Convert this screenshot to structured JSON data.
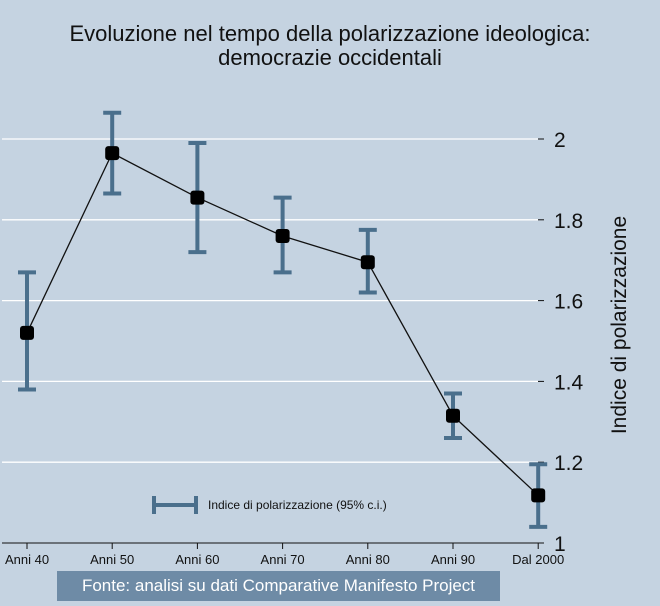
{
  "chart_data": {
    "type": "line",
    "title": "Evoluzione nel tempo della polarizzazione ideologica:",
    "subtitle": "democrazie occidentali",
    "ylabel": "Indice di polarizzazione",
    "xlabel": "",
    "categories": [
      "Anni 40",
      "Anni 50",
      "Anni 60",
      "Anni 70",
      "Anni 80",
      "Anni 90",
      "Dal 2000"
    ],
    "series": [
      {
        "values": [
          1.52,
          1.965,
          1.855,
          1.76,
          1.695,
          1.315,
          1.118
        ],
        "ci_low": [
          1.38,
          1.865,
          1.72,
          1.67,
          1.62,
          1.26,
          1.04
        ],
        "ci_high": [
          1.67,
          2.065,
          1.99,
          1.855,
          1.775,
          1.37,
          1.195
        ]
      }
    ],
    "legend": {
      "label": "Indice di polarizzazione (95% c.i.)",
      "position": "bottom-center"
    },
    "ylim": [
      1,
      2.1
    ],
    "yticks": [
      "1",
      "1.2",
      "1.4",
      "1.6",
      "1.8",
      "2"
    ],
    "grid": true,
    "y_axis_side": "right",
    "source_note": "Fonte: analisi su dati Comparative Manifesto Project",
    "colors": {
      "background": "#c5d3e1",
      "gridline": "#ffffff",
      "errorbar": "#4a6f8c",
      "line": "#111111",
      "marker": "#000000",
      "source_box": "#6e8ba6"
    }
  }
}
